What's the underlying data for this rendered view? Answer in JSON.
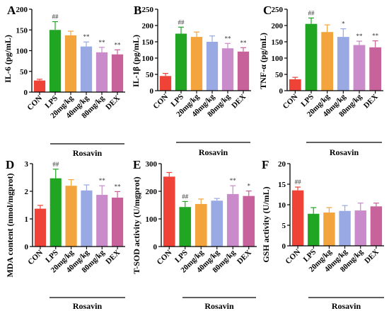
{
  "figure": {
    "group_label": "Rosavin",
    "categories": [
      "CON",
      "LPS",
      "20mg/kg",
      "40mg/kg",
      "80mg/kg",
      "DEX"
    ],
    "colors": [
      "#EF4338",
      "#21A623",
      "#F3A43C",
      "#98A9E3",
      "#C98BC9",
      "#C7629B"
    ]
  },
  "chart_data": [
    {
      "type": "bar",
      "panel_letter": "A",
      "ylabel": "IL-6 (pg/mL)",
      "ylim": [
        0,
        200
      ],
      "yticks": [
        0,
        50,
        100,
        150,
        200
      ],
      "categories": [
        "CON",
        "LPS",
        "20mg/kg",
        "40mg/kg",
        "80mg/kg",
        "DEX"
      ],
      "values": [
        28,
        150,
        137,
        110,
        96,
        91
      ],
      "errors": [
        3,
        20,
        10,
        11,
        12,
        11
      ],
      "annotations": [
        "",
        "##",
        "",
        "**",
        "**",
        "**"
      ],
      "grid": false,
      "legend": "none"
    },
    {
      "type": "bar",
      "panel_letter": "B",
      "ylabel": "IL-1β (pg/mL)",
      "ylim": [
        0,
        250
      ],
      "yticks": [
        0,
        50,
        100,
        150,
        200,
        250
      ],
      "categories": [
        "CON",
        "LPS",
        "20mg/kg",
        "40mg/kg",
        "80mg/kg",
        "DEX"
      ],
      "values": [
        45,
        175,
        165,
        150,
        130,
        120
      ],
      "errors": [
        8,
        20,
        15,
        18,
        15,
        12
      ],
      "annotations": [
        "",
        "##",
        "",
        "",
        "**",
        "**"
      ],
      "grid": false,
      "legend": "none"
    },
    {
      "type": "bar",
      "panel_letter": "C",
      "ylabel": "TNF-α (pg/mL)",
      "ylim": [
        0,
        250
      ],
      "yticks": [
        0,
        50,
        100,
        150,
        200,
        250
      ],
      "categories": [
        "CON",
        "LPS",
        "20mg/kg",
        "40mg/kg",
        "80mg/kg",
        "DEX"
      ],
      "values": [
        35,
        205,
        180,
        165,
        140,
        133
      ],
      "errors": [
        6,
        18,
        22,
        25,
        12,
        20
      ],
      "annotations": [
        "",
        "##",
        "",
        "*",
        "**",
        "**"
      ],
      "grid": false,
      "legend": "none"
    },
    {
      "type": "bar",
      "panel_letter": "D",
      "ylabel": "MDA content (nmol/mgprot)",
      "ylim": [
        0,
        3
      ],
      "yticks": [
        0,
        1,
        2,
        3
      ],
      "categories": [
        "CON",
        "LPS",
        "20mg/kg",
        "40mg/kg",
        "80mg/kg",
        "DEX"
      ],
      "values": [
        1.37,
        2.47,
        2.2,
        2.03,
        1.87,
        1.77
      ],
      "errors": [
        0.12,
        0.33,
        0.22,
        0.2,
        0.33,
        0.22
      ],
      "annotations": [
        "",
        "##",
        "",
        "",
        "**",
        "**"
      ],
      "grid": false,
      "legend": "none"
    },
    {
      "type": "bar",
      "panel_letter": "E",
      "ylabel": "T-SOD activity (U/mgprot)",
      "ylim": [
        0,
        300
      ],
      "yticks": [
        0,
        100,
        200,
        300
      ],
      "categories": [
        "CON",
        "LPS",
        "20mg/kg",
        "40mg/kg",
        "80mg/kg",
        "DEX"
      ],
      "values": [
        253,
        143,
        154,
        166,
        190,
        183
      ],
      "errors": [
        15,
        20,
        18,
        8,
        30,
        18
      ],
      "annotations": [
        "",
        "##",
        "",
        "",
        "**",
        "*"
      ],
      "grid": false,
      "legend": "none"
    },
    {
      "type": "bar",
      "panel_letter": "F",
      "ylabel": "GSH activity (U/mL)",
      "ylim": [
        0,
        20
      ],
      "yticks": [
        0,
        5,
        10,
        15,
        20
      ],
      "categories": [
        "CON",
        "LPS",
        "20mg/kg",
        "40mg/kg",
        "80mg/kg",
        "DEX"
      ],
      "values": [
        13.5,
        7.8,
        8.1,
        8.5,
        8.6,
        9.6
      ],
      "errors": [
        0.8,
        1.5,
        1.2,
        1.3,
        1.8,
        0.8
      ],
      "annotations": [
        "##",
        "",
        "",
        "",
        "",
        ""
      ],
      "grid": false,
      "legend": "none"
    }
  ]
}
